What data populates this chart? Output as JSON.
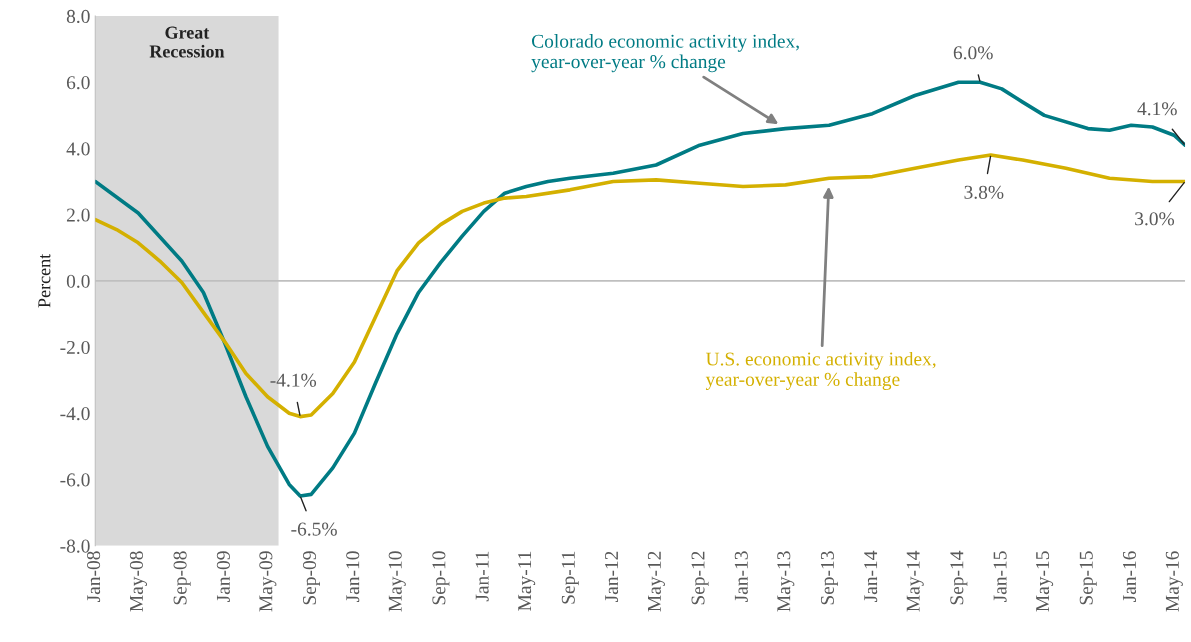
{
  "chart_data": {
    "type": "line",
    "ylabel": "Percent",
    "xlim": [
      "2008-01",
      "2016-06"
    ],
    "ylim": [
      -8,
      8
    ],
    "yticks": [
      {
        "value": -8,
        "label": "-8.0"
      },
      {
        "value": -6,
        "label": "-6.0"
      },
      {
        "value": -4,
        "label": "-4.0"
      },
      {
        "value": -2,
        "label": "-2.0"
      },
      {
        "value": 0,
        "label": "0.0"
      },
      {
        "value": 2,
        "label": "2.0"
      },
      {
        "value": 4,
        "label": "4.0"
      },
      {
        "value": 6,
        "label": "6.0"
      },
      {
        "value": 8,
        "label": "8.0"
      }
    ],
    "xticks": [
      {
        "value": "2008-01",
        "label": "Jan-08"
      },
      {
        "value": "2008-05",
        "label": "May-08"
      },
      {
        "value": "2008-09",
        "label": "Sep-08"
      },
      {
        "value": "2009-01",
        "label": "Jan-09"
      },
      {
        "value": "2009-05",
        "label": "May-09"
      },
      {
        "value": "2009-09",
        "label": "Sep-09"
      },
      {
        "value": "2010-01",
        "label": "Jan-10"
      },
      {
        "value": "2010-05",
        "label": "May-10"
      },
      {
        "value": "2010-09",
        "label": "Sep-10"
      },
      {
        "value": "2011-01",
        "label": "Jan-11"
      },
      {
        "value": "2011-05",
        "label": "May-11"
      },
      {
        "value": "2011-09",
        "label": "Sep-11"
      },
      {
        "value": "2012-01",
        "label": "Jan-12"
      },
      {
        "value": "2012-05",
        "label": "May-12"
      },
      {
        "value": "2012-09",
        "label": "Sep-12"
      },
      {
        "value": "2013-01",
        "label": "Jan-13"
      },
      {
        "value": "2013-05",
        "label": "May-13"
      },
      {
        "value": "2013-09",
        "label": "Sep-13"
      },
      {
        "value": "2014-01",
        "label": "Jan-14"
      },
      {
        "value": "2014-05",
        "label": "May-14"
      },
      {
        "value": "2014-09",
        "label": "Sep-14"
      },
      {
        "value": "2015-01",
        "label": "Jan-15"
      },
      {
        "value": "2015-05",
        "label": "May-15"
      },
      {
        "value": "2015-09",
        "label": "Sep-15"
      },
      {
        "value": "2016-01",
        "label": "Jan-16"
      },
      {
        "value": "2016-05",
        "label": "May-16"
      }
    ],
    "series": [
      {
        "name": "Colorado economic activity index,\nyear-over-year % change",
        "color": "#007b84",
        "x": [
          "2008-01",
          "2008-05",
          "2008-09",
          "2008-11",
          "2009-01",
          "2009-03",
          "2009-05",
          "2009-07",
          "2009-08",
          "2009-09",
          "2009-11",
          "2010-01",
          "2010-03",
          "2010-05",
          "2010-07",
          "2010-09",
          "2010-11",
          "2011-01",
          "2011-03",
          "2011-05",
          "2011-07",
          "2011-09",
          "2012-01",
          "2012-05",
          "2012-09",
          "2013-01",
          "2013-05",
          "2013-09",
          "2014-01",
          "2014-05",
          "2014-09",
          "2014-11",
          "2015-01",
          "2015-03",
          "2015-05",
          "2015-09",
          "2015-11",
          "2016-01",
          "2016-03",
          "2016-05",
          "2016-06"
        ],
        "values": [
          3.0,
          2.05,
          0.6,
          -0.35,
          -1.9,
          -3.5,
          -5.0,
          -6.15,
          -6.5,
          -6.45,
          -5.65,
          -4.6,
          -3.1,
          -1.6,
          -0.35,
          0.55,
          1.35,
          2.1,
          2.65,
          2.85,
          3.0,
          3.1,
          3.25,
          3.5,
          4.1,
          4.45,
          4.6,
          4.7,
          5.05,
          5.6,
          6.0,
          6.0,
          5.8,
          5.4,
          5.0,
          4.6,
          4.55,
          4.7,
          4.65,
          4.4,
          4.1
        ]
      },
      {
        "name": "U.S. economic activity index,\nyear-over-year % change",
        "color": "#d4b000",
        "x": [
          "2008-01",
          "2008-03",
          "2008-05",
          "2008-07",
          "2008-09",
          "2008-11",
          "2009-01",
          "2009-03",
          "2009-05",
          "2009-07",
          "2009-08",
          "2009-09",
          "2009-11",
          "2010-01",
          "2010-03",
          "2010-05",
          "2010-07",
          "2010-09",
          "2010-11",
          "2011-01",
          "2011-03",
          "2011-05",
          "2011-09",
          "2012-01",
          "2012-05",
          "2012-09",
          "2013-01",
          "2013-05",
          "2013-09",
          "2014-01",
          "2014-05",
          "2014-09",
          "2014-12",
          "2015-03",
          "2015-07",
          "2015-11",
          "2016-03",
          "2016-06"
        ],
        "values": [
          1.85,
          1.55,
          1.15,
          0.6,
          -0.05,
          -0.95,
          -1.85,
          -2.8,
          -3.5,
          -4.0,
          -4.1,
          -4.05,
          -3.4,
          -2.45,
          -1.1,
          0.3,
          1.15,
          1.7,
          2.1,
          2.35,
          2.5,
          2.55,
          2.75,
          3.0,
          3.05,
          2.95,
          2.85,
          2.9,
          3.1,
          3.15,
          3.4,
          3.65,
          3.8,
          3.65,
          3.4,
          3.1,
          3.0,
          3.0
        ]
      }
    ],
    "bands": [
      {
        "axis": "x",
        "from": "2008-01",
        "to": "2009-06",
        "label": "Great\nRecession",
        "color": "#d9d9d9"
      }
    ],
    "ref_lines": [
      {
        "axis": "y",
        "value": 0,
        "color": "#bfbfbf"
      }
    ],
    "annotations": [
      {
        "text": "-6.5%",
        "x": "2009-08",
        "y": -6.5
      },
      {
        "text": "-4.1%",
        "x": "2009-08",
        "y": -4.1
      },
      {
        "text": "6.0%",
        "x": "2014-11",
        "y": 6.0
      },
      {
        "text": "3.8%",
        "x": "2014-12",
        "y": 3.8
      },
      {
        "text": "4.1%",
        "x": "2016-06",
        "y": 4.1
      },
      {
        "text": "3.0%",
        "x": "2016-06",
        "y": 3.0
      }
    ]
  }
}
